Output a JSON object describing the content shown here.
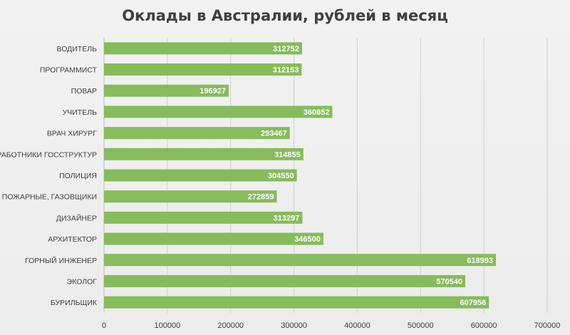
{
  "chart_data": {
    "type": "bar",
    "orientation": "horizontal",
    "title": "Оклады в Австралии, рублей в месяц",
    "categories": [
      "ВОДИТЕЛЬ",
      "ПРОГРАММИСТ",
      "ПОВАР",
      "УЧИТЕЛЬ",
      "ВРАЧ ХИРУРГ",
      "РАБОТНИКИ ГОССТРУКТУР",
      "ПОЛИЦИЯ",
      "ПОЖАРНЫЕ, ГАЗОВЩИКИ",
      "ДИЗАЙНЕР",
      "АРХИТЕКТОР",
      "ГОРНЫЙ ИНЖЕНЕР",
      "ЭКОЛОГ",
      "БУРИЛЬЩИК"
    ],
    "values": [
      312752,
      312153,
      196927,
      360652,
      293467,
      314855,
      304550,
      272859,
      313297,
      346500,
      618993,
      570540,
      607956
    ],
    "xlim": [
      0,
      700000
    ],
    "xticks": [
      0,
      100000,
      200000,
      300000,
      400000,
      500000,
      600000,
      700000
    ],
    "grid": "vertical",
    "data_labels": "inside-end",
    "legend": "none",
    "colors": {
      "bar": "#86bc5b",
      "label_text": "#ffffff",
      "grid": "#d0d0d0",
      "axis_text": "#404040"
    }
  }
}
